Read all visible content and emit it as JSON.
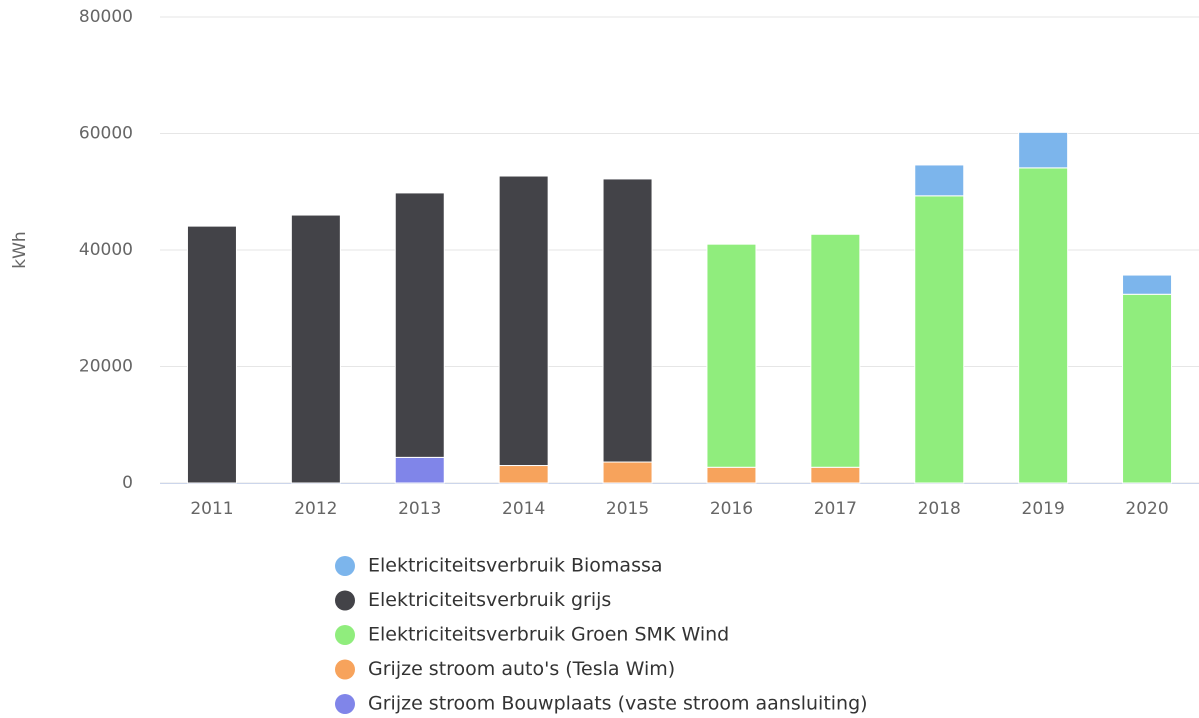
{
  "chart_data": {
    "type": "stacked_bar",
    "y_label": "kWh",
    "categories": [
      "2011",
      "2012",
      "2013",
      "2014",
      "2015",
      "2016",
      "2017",
      "2018",
      "2019",
      "2020"
    ],
    "series": [
      {
        "name": "Elektriciteitsverbruik Biomassa",
        "color": "#7cb5ec",
        "values": [
          null,
          null,
          null,
          null,
          null,
          null,
          null,
          5300,
          6100,
          3300
        ]
      },
      {
        "name": "Elektriciteitsverbruik grijs",
        "color": "#434348",
        "values": [
          44100,
          46000,
          45400,
          49700,
          48600,
          null,
          null,
          null,
          null,
          null
        ]
      },
      {
        "name": "Elektriciteitsverbruik Groen SMK Wind",
        "color": "#90ed7d",
        "values": [
          null,
          null,
          null,
          null,
          null,
          38300,
          40000,
          49300,
          54100,
          32400
        ]
      },
      {
        "name": "Grijze stroom auto's (Tesla Wim)",
        "color": "#f7a35c",
        "values": [
          null,
          null,
          null,
          3000,
          3600,
          2700,
          2700,
          null,
          null,
          null
        ]
      },
      {
        "name": "Grijze stroom Bouwplaats (vaste stroom aansluiting)",
        "color": "#8085e9",
        "values": [
          null,
          null,
          4400,
          null,
          null,
          null,
          null,
          null,
          null,
          null
        ]
      }
    ],
    "ylim": [
      0,
      80000
    ],
    "yticks": [
      0,
      20000,
      40000,
      60000,
      80000
    ],
    "grid": true
  }
}
